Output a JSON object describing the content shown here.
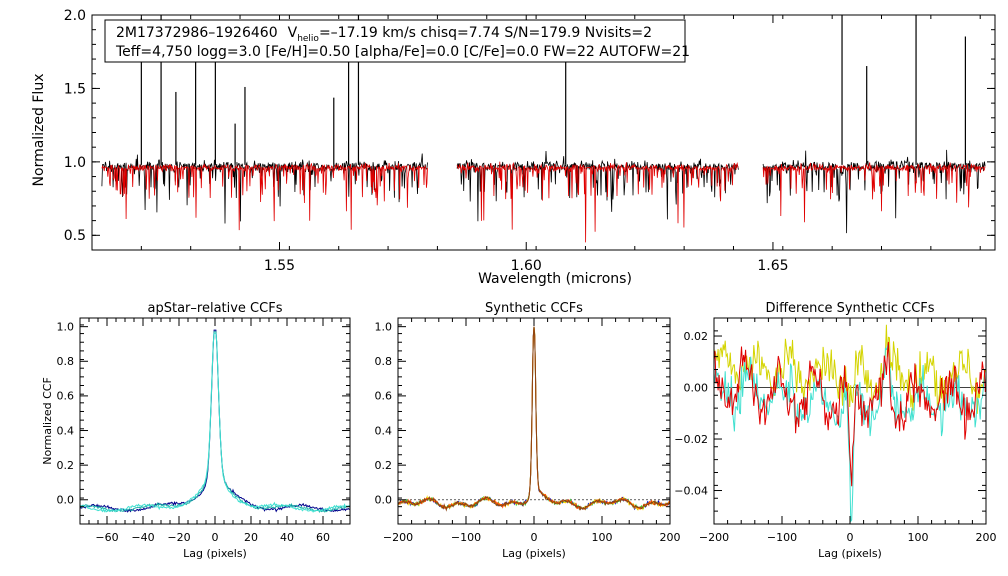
{
  "chart_data": [
    {
      "type": "line",
      "title": "",
      "xlabel": "Wavelength (microns)",
      "ylabel": "Normalized Flux",
      "xlim": [
        1.512,
        1.695
      ],
      "ylim": [
        0.4,
        2.0
      ],
      "xticks": [
        1.55,
        1.6,
        1.65
      ],
      "xtick_labels": [
        "1.55",
        "1.60",
        "1.65"
      ],
      "yticks": [
        0.5,
        1.0,
        1.5,
        2.0
      ],
      "ytick_labels": [
        "0.5",
        "1.0",
        "1.5",
        "2.0"
      ],
      "annotation": {
        "line1_name": "2M17372986–1926460",
        "line1_v": "V",
        "line1_vsub": "helio",
        "line1_rest": "=–17.19 km/s  chisq=7.74  S/N=179.9  Nvisits=2",
        "line2": "Teff=4,750 logg=3.0 [Fe/H]=0.50 [alpha/Fe]=0.0 [C/Fe]=0.0 FW=22 AUTOFW=21"
      },
      "chips": [
        [
          1.514,
          1.58
        ],
        [
          1.586,
          1.643
        ],
        [
          1.648,
          1.693
        ]
      ],
      "emission_lines": [
        1.522,
        1.526,
        1.529,
        1.533,
        1.537,
        1.541,
        1.543,
        1.561,
        1.564,
        1.566,
        1.608,
        1.664,
        1.669,
        1.679,
        1.689
      ],
      "series": [
        {
          "name": "observed",
          "color": "#000000",
          "continuum": 0.97,
          "noise": 0.03
        },
        {
          "name": "model",
          "color": "#e00000",
          "continuum": 0.96,
          "noise": 0.02
        }
      ]
    },
    {
      "type": "line",
      "title": "apStar–relative CCFs",
      "xlabel": "Lag (pixels)",
      "ylabel": "Normalized CCF",
      "xlim": [
        -75,
        75
      ],
      "ylim": [
        -0.14,
        1.05
      ],
      "xticks": [
        -60,
        -40,
        -20,
        0,
        20,
        40,
        60
      ],
      "xtick_labels": [
        "−60",
        "−40",
        "−20",
        "0",
        "20",
        "40",
        "60"
      ],
      "yticks": [
        0.0,
        0.2,
        0.4,
        0.6,
        0.8,
        1.0
      ],
      "ytick_labels": [
        "0.0",
        "0.2",
        "0.4",
        "0.6",
        "0.8",
        "1.0"
      ],
      "peak": 0.98,
      "series": [
        {
          "color": "#00008b"
        },
        {
          "color": "#20b2aa"
        },
        {
          "color": "#40e0d0"
        }
      ]
    },
    {
      "type": "line",
      "title": "Synthetic CCFs",
      "xlabel": "Lag (pixels)",
      "ylabel": "",
      "xlim": [
        -200,
        200
      ],
      "ylim": [
        -0.14,
        1.05
      ],
      "xticks": [
        -200,
        -100,
        0,
        100,
        200
      ],
      "xtick_labels": [
        "−200",
        "−100",
        "0",
        "100",
        "200"
      ],
      "yticks": [
        0.0,
        0.2,
        0.4,
        0.6,
        0.8,
        1.0
      ],
      "ytick_labels": [
        "0.0",
        "0.2",
        "0.4",
        "0.6",
        "0.8",
        "1.0"
      ],
      "peak": 1.0,
      "series": [
        {
          "color": "#0000cd"
        },
        {
          "color": "#32cd32"
        },
        {
          "color": "#ffd700"
        },
        {
          "color": "#ff4500"
        },
        {
          "color": "#8b4513"
        }
      ]
    },
    {
      "type": "line",
      "title": "Difference Synthetic CCFs",
      "xlabel": "Lag (pixels)",
      "ylabel": "",
      "xlim": [
        -200,
        200
      ],
      "ylim": [
        -0.053,
        0.027
      ],
      "xticks": [
        -200,
        -100,
        0,
        100,
        200
      ],
      "xtick_labels": [
        "−200",
        "−100",
        "0",
        "100",
        "200"
      ],
      "yticks": [
        -0.04,
        -0.02,
        0.0,
        0.02
      ],
      "ytick_labels": [
        "−0.04",
        "−0.02",
        "0.00",
        "0.02"
      ],
      "series": [
        {
          "color": "#d4d400"
        },
        {
          "color": "#40e0d0"
        },
        {
          "color": "#e00000"
        }
      ]
    }
  ]
}
